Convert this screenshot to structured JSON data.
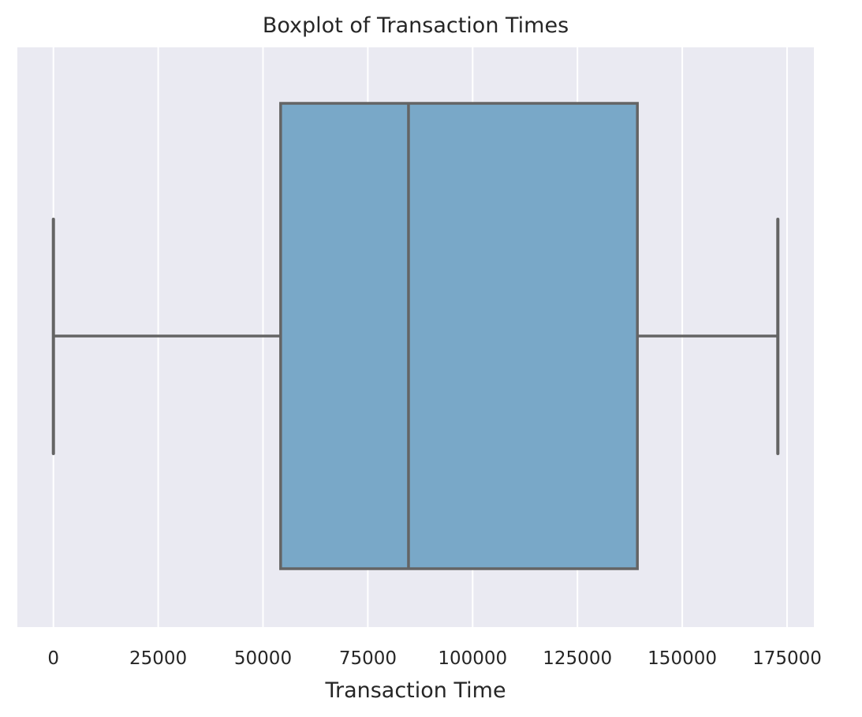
{
  "chart_data": {
    "type": "boxplot",
    "title": "Boxplot of Transaction Times",
    "xlabel": "Transaction Time",
    "ylabel": "",
    "orientation": "horizontal",
    "xlim": [
      -8600,
      181400
    ],
    "xticks": [
      0,
      25000,
      50000,
      75000,
      100000,
      125000,
      150000,
      175000
    ],
    "grid": true,
    "box": {
      "whisker_low": 0,
      "q1": 54200,
      "median": 84700,
      "q3": 139300,
      "whisker_high": 172800
    },
    "colors": {
      "background": "#EAEAF2",
      "box_fill": "#79A8C8",
      "line": "#646464",
      "grid": "#FFFFFF"
    }
  }
}
